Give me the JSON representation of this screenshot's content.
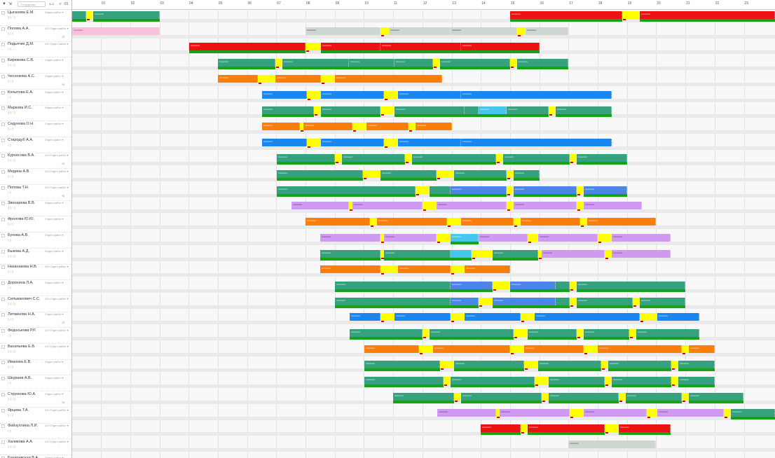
{
  "filter_bar": {
    "filter_icon": "filter-icon",
    "search_placeholder": "Сотрудники",
    "sort_icon": "sort-icon",
    "date_label": "01"
  },
  "timeline": {
    "hours": [
      "01",
      "02",
      "03",
      "04",
      "05",
      "06",
      "07",
      "08",
      "09",
      "10",
      "11",
      "12",
      "13",
      "14",
      "15",
      "16",
      "17",
      "18",
      "19",
      "20",
      "21",
      "22",
      "23"
    ],
    "hour_colors": {
      "green": "#36a17f",
      "red": "#ee1111",
      "blue": "#1a86f0",
      "orange": "#fb7d0c",
      "violet": "#cf9af0",
      "yellow": "#ffff00"
    }
  },
  "employees": [
    {
      "name": "Цыганова Е.М.",
      "dept": "Отдел работ",
      "note": "",
      "count": ""
    },
    {
      "name": "Попова А.А.",
      "dept": "UO Отдел работ",
      "note": "",
      "count": "+2"
    },
    {
      "name": "Подьячих Д.М.",
      "dept": "UO Отдел работ",
      "note": "",
      "count": ""
    },
    {
      "name": "Бирюкова С.В.",
      "dept": "Отдел работ",
      "note": "",
      "count": ""
    },
    {
      "name": "Чеснокова А.С.",
      "dept": "Отдел работ",
      "note": "",
      "count": "+2"
    },
    {
      "name": "Копытова Е.А.",
      "dept": "Отдел работ",
      "note": "",
      "count": ""
    },
    {
      "name": "Маркова И.С.",
      "dept": "Отдел работ",
      "note": "",
      "count": ""
    },
    {
      "name": "Седунова О.Н.",
      "dept": "Отдел работ",
      "note": "",
      "count": ""
    },
    {
      "name": "Стародуб А.А.",
      "dept": "Отдел работ",
      "note": "",
      "count": ""
    },
    {
      "name": "Курносова В.А.",
      "dept": "UO Отдел работ",
      "note": "",
      "count": "+2"
    },
    {
      "name": "Медина А.В.",
      "dept": "UO Отдел работ",
      "note": "",
      "count": ""
    },
    {
      "name": "Попова Т.Н.",
      "dept": "UO Отдел работ",
      "note": "",
      "count": "+2"
    },
    {
      "name": "Звонарева В.В.",
      "dept": "Отдел работ",
      "note": "",
      "count": ""
    },
    {
      "name": "Фролова Ю.Ю.",
      "dept": "Отдел работ",
      "note": "",
      "count": ""
    },
    {
      "name": "Бухова А.В.",
      "dept": "Отдел работ",
      "note": "",
      "count": ""
    },
    {
      "name": "Быкова А.Д.",
      "dept": "Отдел работ",
      "note": "",
      "count": ""
    },
    {
      "name": "Назанакова Н.В.",
      "dept": "UO Отдел работ",
      "note": "",
      "count": ""
    },
    {
      "name": "Дорохина Л.А.",
      "dept": "Отдел работ",
      "note": "",
      "count": ""
    },
    {
      "name": "Сильванович С.С.",
      "dept": "UO Отдел работ",
      "note": "",
      "count": ""
    },
    {
      "name": "Литвинова Н.А.",
      "dept": "Отдел работ",
      "note": "",
      "count": "+2"
    },
    {
      "name": "Федоськова Р.Р.",
      "dept": "UO Отдел работ",
      "note": "",
      "count": ""
    },
    {
      "name": "Васильева Е.В.",
      "dept": "UO Отдел работ",
      "note": "",
      "count": ""
    },
    {
      "name": "Иванова Е.В.",
      "dept": "Отдел работ",
      "note": "",
      "count": ""
    },
    {
      "name": "Шкураев А.В.",
      "dept": "Отдел работ",
      "note": "",
      "count": ""
    },
    {
      "name": "Стрункова Ю.А.",
      "dept": "Отдел работ",
      "note": "",
      "count": "+2"
    },
    {
      "name": "Ярцева Т.А.",
      "dept": "UO Отдел работ",
      "note": "",
      "count": ""
    },
    {
      "name": "Файзуллина Л.И.",
      "dept": "UO Отдел работ",
      "note": "",
      "count": ""
    },
    {
      "name": "Халикова А.А.",
      "dept": "UO Отдел работ",
      "note": "",
      "count": ""
    },
    {
      "name": "Бахаревская В.А.",
      "dept": "Отдел работ",
      "note": "",
      "count": ""
    }
  ]
}
